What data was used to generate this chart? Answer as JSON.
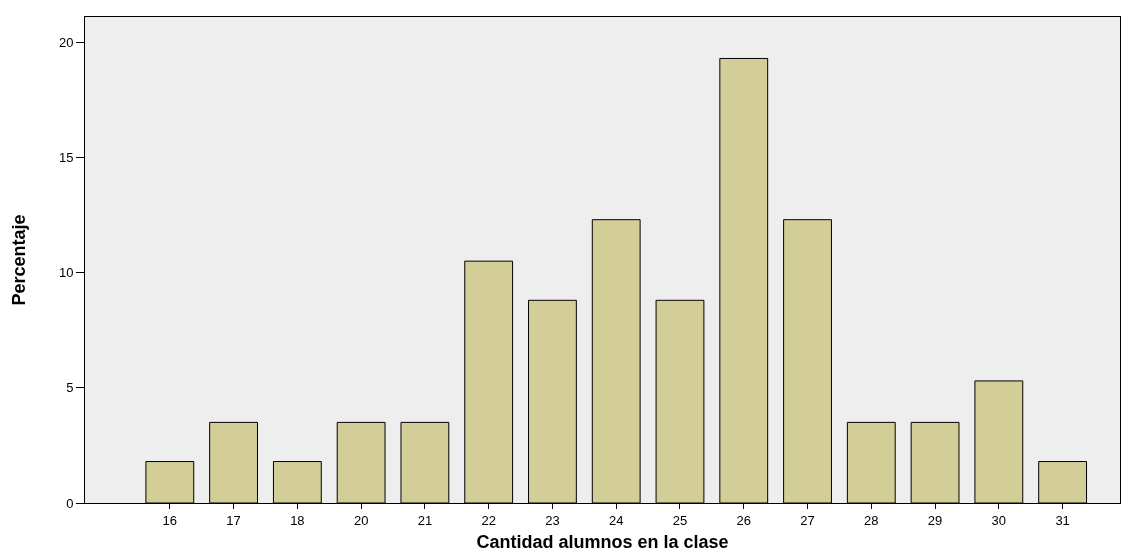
{
  "chart_data": {
    "type": "bar",
    "xlabel": "Cantidad alumnos en la clase",
    "ylabel": "Percentaje",
    "categories": [
      "16",
      "17",
      "18",
      "20",
      "21",
      "22",
      "23",
      "24",
      "25",
      "26",
      "27",
      "28",
      "29",
      "30",
      "31"
    ],
    "values": [
      1.8,
      3.5,
      1.8,
      3.5,
      3.5,
      10.5,
      8.8,
      12.3,
      8.8,
      19.3,
      12.3,
      3.5,
      3.5,
      5.3,
      1.8
    ],
    "color": "#d3ce97",
    "ylim": [
      0,
      21.1
    ],
    "yticks": [
      0,
      5,
      10,
      15,
      20
    ],
    "grid": false,
    "legend": false
  }
}
